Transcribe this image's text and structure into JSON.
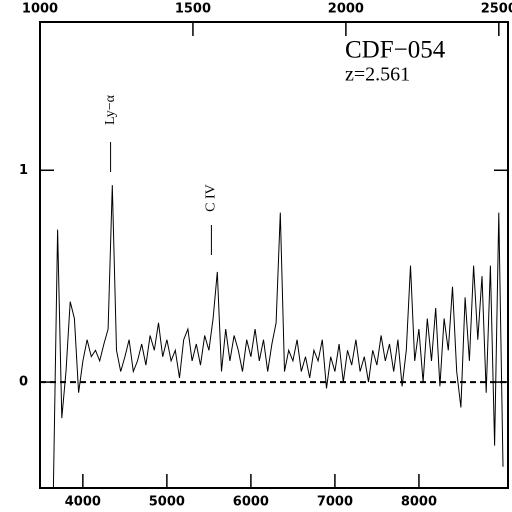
{
  "chart_data": {
    "type": "line",
    "title": "CDF−054",
    "subtitle": "z=2.561",
    "x": [
      3650,
      3700,
      3750,
      3800,
      3850,
      3900,
      3950,
      4000,
      4050,
      4100,
      4150,
      4200,
      4250,
      4300,
      4350,
      4400,
      4450,
      4500,
      4550,
      4600,
      4650,
      4700,
      4750,
      4800,
      4850,
      4900,
      4950,
      5000,
      5050,
      5100,
      5150,
      5200,
      5250,
      5300,
      5350,
      5400,
      5450,
      5500,
      5550,
      5600,
      5650,
      5700,
      5750,
      5800,
      5850,
      5900,
      5950,
      6000,
      6050,
      6100,
      6150,
      6200,
      6250,
      6300,
      6350,
      6400,
      6450,
      6500,
      6550,
      6600,
      6650,
      6700,
      6750,
      6800,
      6850,
      6900,
      6950,
      7000,
      7050,
      7100,
      7150,
      7200,
      7250,
      7300,
      7350,
      7400,
      7450,
      7500,
      7550,
      7600,
      7650,
      7700,
      7750,
      7800,
      7850,
      7900,
      7950,
      8000,
      8050,
      8100,
      8150,
      8200,
      8250,
      8300,
      8350,
      8400,
      8450,
      8500,
      8550,
      8600,
      8650,
      8700,
      8750,
      8800,
      8850,
      8900,
      8950,
      9000
    ],
    "values": [
      -0.5,
      0.72,
      -0.17,
      0.05,
      0.38,
      0.3,
      -0.05,
      0.1,
      0.2,
      0.12,
      0.15,
      0.1,
      0.18,
      0.25,
      0.93,
      0.15,
      0.05,
      0.12,
      0.2,
      0.05,
      0.1,
      0.18,
      0.08,
      0.22,
      0.15,
      0.28,
      0.12,
      0.2,
      0.1,
      0.15,
      0.02,
      0.2,
      0.25,
      0.1,
      0.18,
      0.08,
      0.22,
      0.15,
      0.3,
      0.52,
      0.05,
      0.25,
      0.1,
      0.22,
      0.15,
      0.05,
      0.2,
      0.12,
      0.25,
      0.1,
      0.2,
      0.05,
      0.18,
      0.28,
      0.8,
      0.05,
      0.15,
      0.1,
      0.2,
      0.05,
      0.12,
      0.02,
      0.15,
      0.1,
      0.2,
      -0.03,
      0.12,
      0.05,
      0.18,
      0.0,
      0.15,
      0.08,
      0.2,
      0.05,
      0.12,
      0.0,
      0.15,
      0.08,
      0.22,
      0.1,
      0.18,
      0.05,
      0.2,
      -0.02,
      0.15,
      0.55,
      0.1,
      0.25,
      0.0,
      0.3,
      0.1,
      0.35,
      -0.02,
      0.3,
      0.15,
      0.45,
      0.05,
      -0.12,
      0.4,
      0.1,
      0.55,
      0.2,
      0.5,
      -0.05,
      0.55,
      -0.3,
      0.8,
      -0.4
    ],
    "color": "#000000",
    "xlim": [
      3490,
      9060
    ],
    "xticks": [
      4000,
      5000,
      6000,
      7000,
      8000
    ],
    "x2lim": [
      1000,
      2530
    ],
    "x2ticks": [
      1000,
      1500,
      2000,
      2500
    ],
    "ylim": [
      -0.5,
      1.7
    ],
    "yticks": [
      0,
      1
    ],
    "reference_line": 0,
    "annotations": [
      {
        "text": "Ly−α",
        "x": 4330
      },
      {
        "text": "C IV",
        "x": 5530
      }
    ]
  }
}
